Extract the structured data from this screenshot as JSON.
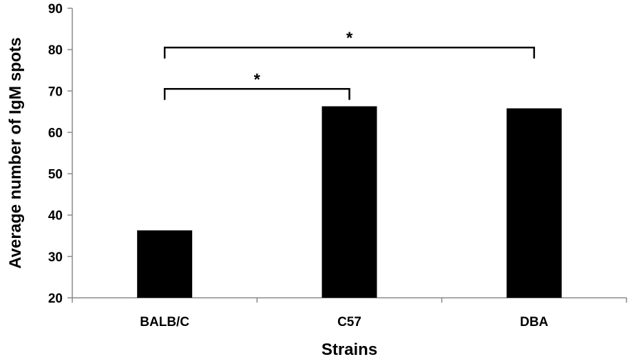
{
  "chart_data": {
    "type": "bar",
    "categories": [
      "BALB/C",
      "C57",
      "DBA"
    ],
    "values": [
      36.3,
      66.3,
      65.8
    ],
    "title": "",
    "xlabel": "Strains",
    "ylabel": "Average number of IgM spots",
    "ylim": [
      20,
      90
    ],
    "yticks": [
      20,
      30,
      40,
      50,
      60,
      70,
      80,
      90
    ],
    "grid": false,
    "bar_color": "#000000",
    "annotations": [
      {
        "from": "BALB/C",
        "to": "C57",
        "y": 70.5,
        "label": "*"
      },
      {
        "from": "BALB/C",
        "to": "DBA",
        "y": 80.5,
        "label": "*"
      }
    ]
  }
}
